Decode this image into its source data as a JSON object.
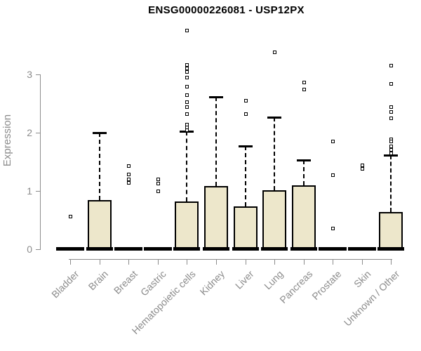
{
  "chart_data": {
    "type": "boxplot",
    "title": "ENSG00000226081 - USP12PX",
    "xlabel": "",
    "ylabel": "Expression",
    "ylim": [
      0,
      3.8
    ],
    "yticks": [
      0,
      1,
      2,
      3
    ],
    "grid": false,
    "legend": "none",
    "box_fill_color": "#ede7cb",
    "box_line_color": "#000000",
    "axis_color": "#8c8c8c",
    "categories": [
      "Bladder",
      "Brain",
      "Breast",
      "Gastric",
      "Hematopoietic cells",
      "Kidney",
      "Liver",
      "Lung",
      "Pancreas",
      "Prostate",
      "Skin",
      "Unknown / Other"
    ],
    "series": [
      {
        "label": "Bladder",
        "whisker_low": 0,
        "q1": 0,
        "median": 0,
        "q3": 0,
        "whisker_high": 0,
        "outliers": [
          0.57
        ]
      },
      {
        "label": "Brain",
        "whisker_low": 0,
        "q1": 0,
        "median": 0,
        "q3": 0.84,
        "whisker_high": 2.0,
        "outliers": []
      },
      {
        "label": "Breast",
        "whisker_low": 0,
        "q1": 0,
        "median": 0,
        "q3": 0,
        "whisker_high": 0,
        "outliers": [
          1.43,
          1.29,
          1.2,
          1.15
        ]
      },
      {
        "label": "Gastric",
        "whisker_low": 0,
        "q1": 0,
        "median": 0,
        "q3": 0,
        "whisker_high": 0,
        "outliers": [
          1.2,
          1.13,
          1.0
        ]
      },
      {
        "label": "Hematopoietic cells",
        "whisker_low": 0,
        "q1": 0,
        "median": 0,
        "q3": 0.82,
        "whisker_high": 2.03,
        "outliers": [
          3.76,
          3.17,
          3.11,
          3.05,
          2.95,
          2.8,
          2.65,
          2.53,
          2.45,
          2.33,
          2.15,
          2.1,
          2.05
        ]
      },
      {
        "label": "Kidney",
        "whisker_low": 0,
        "q1": 0,
        "median": 0,
        "q3": 1.08,
        "whisker_high": 2.61,
        "outliers": []
      },
      {
        "label": "Liver",
        "whisker_low": 0,
        "q1": 0,
        "median": 0,
        "q3": 0.73,
        "whisker_high": 1.77,
        "outliers": [
          2.56,
          2.32
        ]
      },
      {
        "label": "Lung",
        "whisker_low": 0,
        "q1": 0,
        "median": 0,
        "q3": 1.01,
        "whisker_high": 2.27,
        "outliers": [
          3.39
        ]
      },
      {
        "label": "Pancreas",
        "whisker_low": 0,
        "q1": 0,
        "median": 0,
        "q3": 1.1,
        "whisker_high": 1.53,
        "outliers": [
          2.87,
          2.75
        ]
      },
      {
        "label": "Prostate",
        "whisker_low": 0,
        "q1": 0,
        "median": 0,
        "q3": 0,
        "whisker_high": 0,
        "outliers": [
          1.85,
          1.28,
          0.36
        ]
      },
      {
        "label": "Skin",
        "whisker_low": 0,
        "q1": 0,
        "median": 0,
        "q3": 0,
        "whisker_high": 0,
        "outliers": [
          1.44,
          1.39
        ]
      },
      {
        "label": "Unknown / Other",
        "whisker_low": 0,
        "q1": 0,
        "median": 0,
        "q3": 0.64,
        "whisker_high": 1.61,
        "outliers": [
          3.16,
          2.84,
          2.45,
          2.36,
          2.25,
          1.89,
          1.85,
          1.77,
          1.71,
          1.65
        ]
      }
    ]
  }
}
